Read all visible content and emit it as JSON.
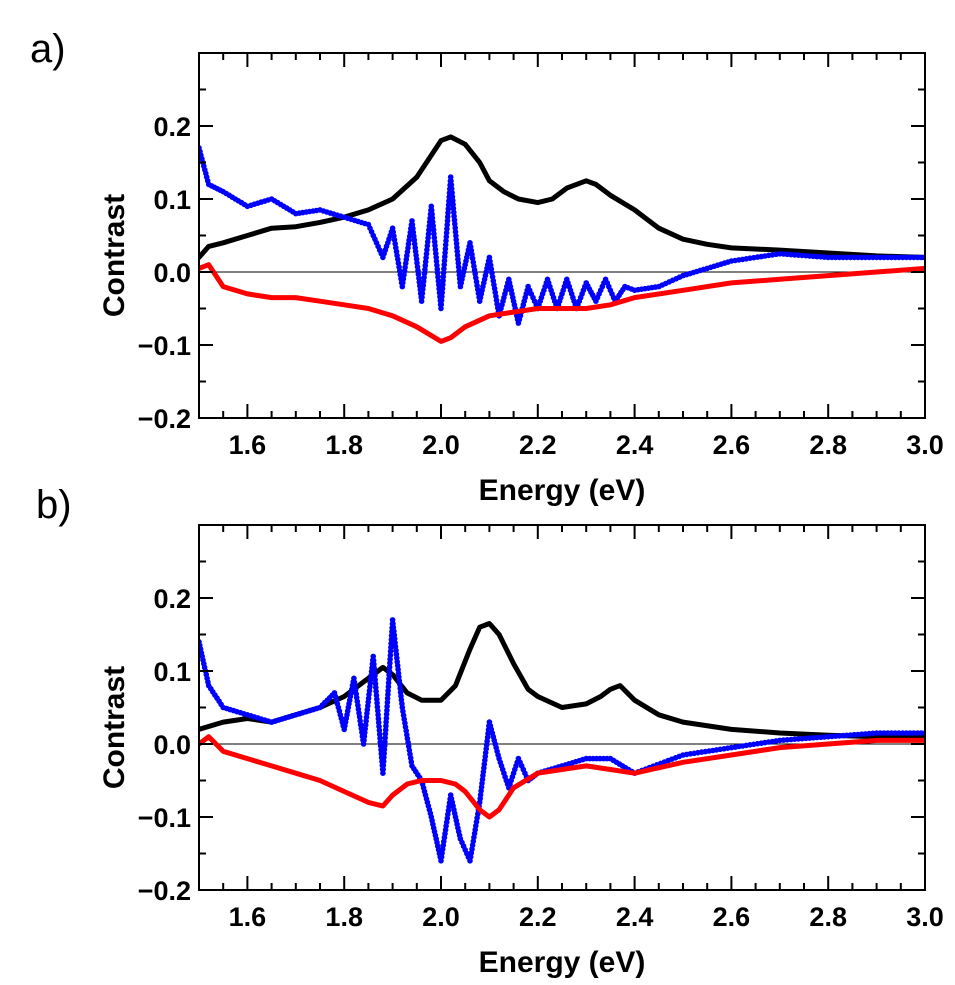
{
  "figure": {
    "panel_labels": [
      "a)",
      "b)"
    ]
  },
  "chart_data": [
    {
      "type": "line",
      "panel": "a)",
      "title": "",
      "xlabel": "Energy (eV)",
      "ylabel": "Contrast",
      "xlim": [
        1.5,
        3.0
      ],
      "ylim": [
        -0.2,
        0.3
      ],
      "xticks": [
        1.6,
        1.8,
        2.0,
        2.2,
        2.4,
        2.6,
        2.8,
        3.0
      ],
      "xtick_labels": [
        "1.6",
        "1.8",
        "2.0",
        "2.2",
        "2.4",
        "2.6",
        "2.8",
        "3.0"
      ],
      "yticks": [
        -0.2,
        -0.1,
        0.0,
        0.1,
        0.2
      ],
      "ytick_labels": [
        "−0.2",
        "−0.1",
        "0.0",
        "0.1",
        "0.2"
      ],
      "zero_line": true,
      "series": [
        {
          "name": "black",
          "color": "#000000",
          "style": "line",
          "x": [
            1.5,
            1.52,
            1.55,
            1.6,
            1.65,
            1.7,
            1.75,
            1.8,
            1.85,
            1.9,
            1.95,
            1.98,
            2.0,
            2.02,
            2.05,
            2.08,
            2.1,
            2.13,
            2.16,
            2.2,
            2.23,
            2.26,
            2.28,
            2.3,
            2.32,
            2.35,
            2.4,
            2.45,
            2.5,
            2.55,
            2.6,
            2.7,
            2.8,
            2.9,
            3.0
          ],
          "y": [
            0.02,
            0.035,
            0.04,
            0.05,
            0.06,
            0.062,
            0.068,
            0.075,
            0.085,
            0.1,
            0.13,
            0.16,
            0.18,
            0.185,
            0.175,
            0.15,
            0.125,
            0.11,
            0.1,
            0.095,
            0.1,
            0.115,
            0.12,
            0.125,
            0.12,
            0.105,
            0.085,
            0.06,
            0.045,
            0.038,
            0.033,
            0.03,
            0.026,
            0.022,
            0.02
          ]
        },
        {
          "name": "blue",
          "color": "#0000ff",
          "style": "dots",
          "x": [
            1.5,
            1.52,
            1.55,
            1.6,
            1.65,
            1.7,
            1.75,
            1.8,
            1.85,
            1.88,
            1.9,
            1.92,
            1.94,
            1.96,
            1.98,
            2.0,
            2.02,
            2.04,
            2.06,
            2.08,
            2.1,
            2.12,
            2.14,
            2.16,
            2.18,
            2.2,
            2.22,
            2.24,
            2.26,
            2.28,
            2.3,
            2.32,
            2.34,
            2.36,
            2.38,
            2.4,
            2.45,
            2.5,
            2.55,
            2.6,
            2.7,
            2.8,
            2.9,
            3.0
          ],
          "y": [
            0.17,
            0.12,
            0.11,
            0.09,
            0.1,
            0.08,
            0.085,
            0.075,
            0.065,
            0.02,
            0.06,
            -0.02,
            0.07,
            -0.04,
            0.09,
            -0.05,
            0.13,
            -0.02,
            0.04,
            -0.04,
            0.02,
            -0.06,
            -0.01,
            -0.07,
            -0.02,
            -0.05,
            -0.01,
            -0.05,
            -0.01,
            -0.05,
            -0.015,
            -0.04,
            -0.01,
            -0.04,
            -0.02,
            -0.025,
            -0.02,
            -0.005,
            0.005,
            0.015,
            0.025,
            0.02,
            0.02,
            0.02
          ]
        },
        {
          "name": "red",
          "color": "#ff0000",
          "style": "line",
          "x": [
            1.5,
            1.52,
            1.55,
            1.6,
            1.65,
            1.7,
            1.75,
            1.8,
            1.85,
            1.9,
            1.95,
            2.0,
            2.02,
            2.05,
            2.1,
            2.15,
            2.2,
            2.25,
            2.3,
            2.35,
            2.4,
            2.5,
            2.6,
            2.7,
            2.8,
            2.9,
            3.0
          ],
          "y": [
            0.005,
            0.01,
            -0.02,
            -0.03,
            -0.035,
            -0.035,
            -0.04,
            -0.045,
            -0.05,
            -0.06,
            -0.075,
            -0.095,
            -0.09,
            -0.075,
            -0.06,
            -0.055,
            -0.05,
            -0.05,
            -0.05,
            -0.045,
            -0.035,
            -0.025,
            -0.015,
            -0.01,
            -0.005,
            0.0,
            0.005
          ]
        }
      ]
    },
    {
      "type": "line",
      "panel": "b)",
      "title": "",
      "xlabel": "Energy (eV)",
      "ylabel": "Contrast",
      "xlim": [
        1.5,
        3.0
      ],
      "ylim": [
        -0.2,
        0.3
      ],
      "xticks": [
        1.6,
        1.8,
        2.0,
        2.2,
        2.4,
        2.6,
        2.8,
        3.0
      ],
      "xtick_labels": [
        "1.6",
        "1.8",
        "2.0",
        "2.2",
        "2.4",
        "2.6",
        "2.8",
        "3.0"
      ],
      "yticks": [
        -0.2,
        -0.1,
        0.0,
        0.1,
        0.2
      ],
      "ytick_labels": [
        "−0.2",
        "−0.1",
        "0.0",
        "0.1",
        "0.2"
      ],
      "zero_line": true,
      "series": [
        {
          "name": "black",
          "color": "#000000",
          "style": "line",
          "x": [
            1.5,
            1.55,
            1.6,
            1.65,
            1.7,
            1.75,
            1.8,
            1.85,
            1.88,
            1.9,
            1.93,
            1.96,
            2.0,
            2.03,
            2.06,
            2.08,
            2.1,
            2.12,
            2.15,
            2.18,
            2.2,
            2.25,
            2.3,
            2.33,
            2.35,
            2.37,
            2.4,
            2.45,
            2.5,
            2.6,
            2.7,
            2.8,
            2.9,
            3.0
          ],
          "y": [
            0.02,
            0.03,
            0.035,
            0.03,
            0.04,
            0.05,
            0.065,
            0.09,
            0.105,
            0.095,
            0.07,
            0.06,
            0.06,
            0.08,
            0.13,
            0.16,
            0.165,
            0.15,
            0.11,
            0.075,
            0.065,
            0.05,
            0.055,
            0.065,
            0.075,
            0.08,
            0.06,
            0.04,
            0.03,
            0.02,
            0.015,
            0.012,
            0.01,
            0.01
          ]
        },
        {
          "name": "blue",
          "color": "#0000ff",
          "style": "dots",
          "x": [
            1.5,
            1.52,
            1.55,
            1.6,
            1.65,
            1.7,
            1.75,
            1.78,
            1.8,
            1.82,
            1.84,
            1.86,
            1.88,
            1.9,
            1.92,
            1.94,
            1.96,
            1.98,
            2.0,
            2.02,
            2.04,
            2.06,
            2.08,
            2.1,
            2.12,
            2.14,
            2.16,
            2.18,
            2.2,
            2.25,
            2.3,
            2.35,
            2.4,
            2.5,
            2.6,
            2.7,
            2.8,
            2.9,
            3.0
          ],
          "y": [
            0.14,
            0.08,
            0.05,
            0.04,
            0.03,
            0.04,
            0.05,
            0.07,
            0.02,
            0.09,
            0.0,
            0.12,
            -0.04,
            0.17,
            0.05,
            -0.03,
            -0.05,
            -0.1,
            -0.16,
            -0.07,
            -0.13,
            -0.16,
            -0.08,
            0.03,
            -0.02,
            -0.06,
            -0.02,
            -0.05,
            -0.04,
            -0.03,
            -0.02,
            -0.02,
            -0.04,
            -0.015,
            -0.005,
            0.005,
            0.01,
            0.015,
            0.015
          ]
        },
        {
          "name": "red",
          "color": "#ff0000",
          "style": "line",
          "x": [
            1.5,
            1.52,
            1.55,
            1.6,
            1.65,
            1.7,
            1.75,
            1.8,
            1.85,
            1.88,
            1.9,
            1.93,
            1.96,
            2.0,
            2.03,
            2.05,
            2.08,
            2.1,
            2.12,
            2.15,
            2.2,
            2.25,
            2.3,
            2.35,
            2.4,
            2.5,
            2.6,
            2.7,
            2.8,
            2.9,
            3.0
          ],
          "y": [
            0.0,
            0.01,
            -0.01,
            -0.02,
            -0.03,
            -0.04,
            -0.05,
            -0.065,
            -0.08,
            -0.085,
            -0.07,
            -0.055,
            -0.05,
            -0.05,
            -0.055,
            -0.065,
            -0.09,
            -0.1,
            -0.09,
            -0.06,
            -0.04,
            -0.035,
            -0.03,
            -0.035,
            -0.04,
            -0.025,
            -0.015,
            -0.005,
            0.0,
            0.005,
            0.005
          ]
        }
      ]
    }
  ]
}
